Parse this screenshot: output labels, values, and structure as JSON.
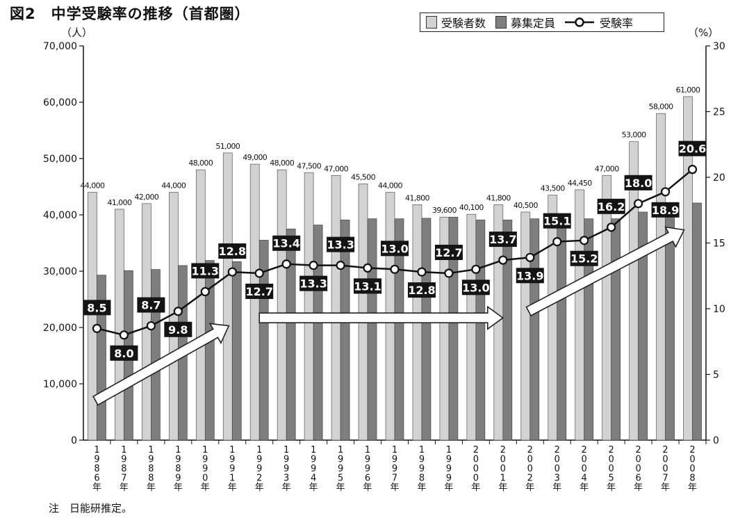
{
  "title": "図2　中学受験率の推移（首都圏）",
  "note": "注　日能研推定。",
  "chart_data": {
    "type": "bar",
    "title": "図2　中学受験率の推移（首都圏）",
    "left_axis": {
      "unit": "（人）",
      "min": 0,
      "max": 70000,
      "ticks": [
        "0",
        "10,000",
        "20,000",
        "30,000",
        "40,000",
        "50,000",
        "60,000",
        "70,000"
      ]
    },
    "right_axis": {
      "unit": "（%）",
      "min": 0,
      "max": 30,
      "ticks": [
        "0",
        "5",
        "10",
        "15",
        "20",
        "25",
        "30"
      ]
    },
    "categories": [
      "1986年",
      "1987年",
      "1988年",
      "1989年",
      "1990年",
      "1991年",
      "1992年",
      "1993年",
      "1994年",
      "1995年",
      "1996年",
      "1997年",
      "1998年",
      "1999年",
      "2000年",
      "2001年",
      "2002年",
      "2003年",
      "2004年",
      "2005年",
      "2006年",
      "2007年",
      "2008年"
    ],
    "series": [
      {
        "name": "受験者数",
        "axis": "left",
        "color": "#d2d2d2",
        "values": [
          44000,
          41000,
          42000,
          44000,
          48000,
          51000,
          49000,
          48000,
          47500,
          47000,
          45500,
          44000,
          41800,
          39600,
          40100,
          41800,
          40500,
          43500,
          44450,
          47000,
          53000,
          58000,
          61000
        ],
        "labels": [
          "44,000",
          "41,000",
          "42,000",
          "44,000",
          "48,000",
          "51,000",
          "49,000",
          "48,000",
          "47,500",
          "47,000",
          "45,500",
          "44,000",
          "41,800",
          "39,600",
          "40,100",
          "41,800",
          "40,500",
          "43,500",
          "44,450",
          "47,000",
          "53,000",
          "58,000",
          "61,000"
        ]
      },
      {
        "name": "募集定員",
        "axis": "left",
        "color": "#7e7e7e",
        "values": [
          29300,
          30100,
          30300,
          31000,
          31900,
          31700,
          35500,
          37500,
          38200,
          39100,
          39300,
          39300,
          39400,
          39600,
          39100,
          39100,
          39300,
          39300,
          39300,
          39300,
          40500,
          40600,
          42100
        ]
      },
      {
        "name": "受験率",
        "axis": "right",
        "type": "line",
        "values": [
          8.5,
          8.0,
          8.7,
          9.8,
          11.3,
          12.8,
          12.7,
          13.4,
          13.3,
          13.3,
          13.1,
          13.0,
          12.8,
          12.7,
          13.0,
          13.7,
          13.9,
          15.1,
          15.2,
          16.2,
          18.0,
          18.9,
          20.6
        ],
        "labels": [
          "8.5",
          "8.0",
          "8.7",
          "9.8",
          "11.3",
          "12.8",
          "12.7",
          "13.4",
          "13.3",
          "13.3",
          "13.1",
          "13.0",
          "12.8",
          "12.7",
          "13.0",
          "13.7",
          "13.9",
          "15.1",
          "15.2",
          "16.2",
          "18.0",
          "18.9",
          "20.6"
        ],
        "label_side": [
          "up",
          "down",
          "up",
          "down",
          "up",
          "up",
          "down",
          "up",
          "down",
          "up",
          "down",
          "up",
          "down",
          "up",
          "down",
          "up",
          "down",
          "up",
          "down",
          "up",
          "up",
          "down",
          "up"
        ]
      }
    ],
    "legend": {
      "position": "top-right",
      "items": [
        "受験者数",
        "募集定員",
        "受験率"
      ]
    },
    "trend_arrows": [
      {
        "direction": "rising",
        "from": "1986年",
        "to": "1991年"
      },
      {
        "direction": "flat",
        "from": "1992年",
        "to": "2001年"
      },
      {
        "direction": "rising",
        "from": "2002年",
        "to": "2008年"
      }
    ]
  }
}
